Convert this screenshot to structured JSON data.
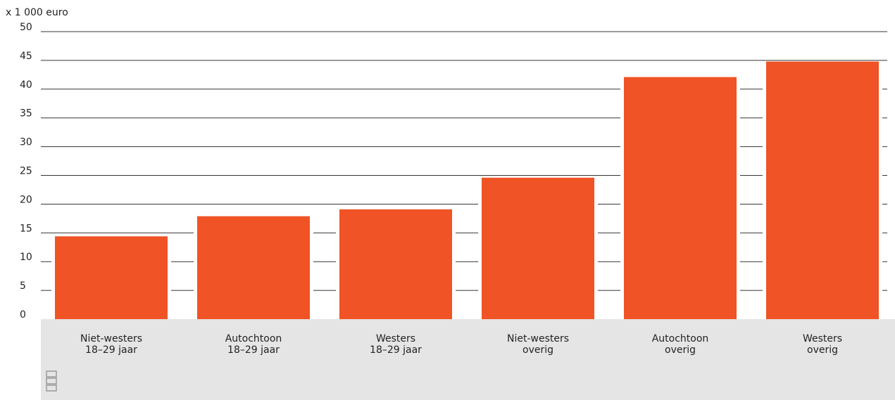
{
  "chart_data": {
    "type": "bar",
    "y_axis_label": "x 1 000 euro",
    "categories": [
      [
        "Niet-westers",
        "18–29 jaar"
      ],
      [
        "Autochtoon",
        "18–29 jaar"
      ],
      [
        "Westers",
        "18–29 jaar"
      ],
      [
        "Niet-westers",
        "overig"
      ],
      [
        "Autochtoon",
        "overig"
      ],
      [
        "Westers",
        "overig"
      ]
    ],
    "values": [
      14.4,
      17.9,
      19.1,
      24.6,
      42.1,
      44.8
    ],
    "color": "#f05325",
    "ylim": [
      0,
      50
    ],
    "yticks": [
      0,
      5,
      10,
      15,
      20,
      25,
      30,
      35,
      40,
      45,
      50
    ],
    "grid": true
  }
}
